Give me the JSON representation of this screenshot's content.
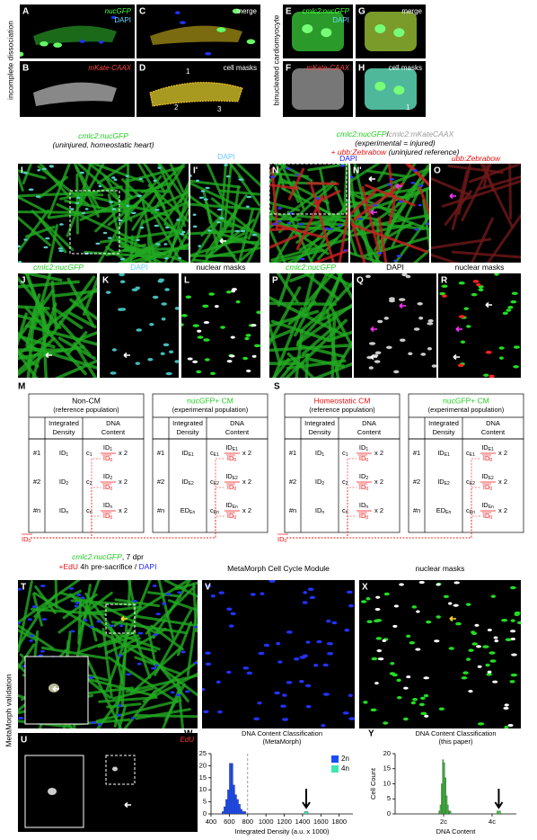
{
  "side_labels": [
    "incomplete dissociation",
    "binucleated cardiomyocyte",
    "MetaMorph validation"
  ],
  "panels": [
    {
      "letter": "A",
      "labels": [
        {
          "text": "nucGFP",
          "color": "#4f4",
          "italic": true
        },
        {
          "text": "DAPI",
          "color": "#6df"
        }
      ]
    },
    {
      "letter": "C",
      "labels": [
        {
          "text": "merge",
          "color": "#fff"
        }
      ]
    },
    {
      "letter": "B",
      "labels": [
        {
          "text": "mKate-CAAX",
          "color": "#f44",
          "italic": true
        }
      ]
    },
    {
      "letter": "D",
      "labels": [
        {
          "text": "cell masks",
          "color": "#fff"
        }
      ],
      "annotations": [
        "1",
        "2",
        "3"
      ]
    },
    {
      "letter": "E",
      "labels": [
        {
          "text": "cmlc2:nucGFP",
          "color": "#4f4",
          "italic": true
        },
        {
          "text": "DAPI",
          "color": "#6df"
        }
      ]
    },
    {
      "letter": "G",
      "labels": [
        {
          "text": "merge",
          "color": "#fff"
        }
      ]
    },
    {
      "letter": "F",
      "labels": [
        {
          "text": "mKate-CAAX",
          "color": "#f44",
          "italic": true
        }
      ]
    },
    {
      "letter": "H",
      "labels": [
        {
          "text": "cell masks",
          "color": "#fff"
        }
      ],
      "annotations": [
        "1"
      ]
    },
    {
      "letter": "I",
      "labels": []
    },
    {
      "letter": "I'",
      "labels": []
    },
    {
      "letter": "N",
      "labels": []
    },
    {
      "letter": "N'",
      "labels": []
    },
    {
      "letter": "O",
      "labels": []
    },
    {
      "letter": "J",
      "labels": []
    },
    {
      "letter": "K",
      "labels": []
    },
    {
      "letter": "L",
      "labels": []
    },
    {
      "letter": "P",
      "labels": []
    },
    {
      "letter": "Q",
      "labels": []
    },
    {
      "letter": "R",
      "labels": []
    },
    {
      "letter": "T",
      "labels": []
    },
    {
      "letter": "V",
      "labels": []
    },
    {
      "letter": "X",
      "labels": []
    },
    {
      "letter": "U",
      "labels": [
        {
          "text": "EdU",
          "color": "#f33",
          "italic": true
        }
      ]
    }
  ],
  "headers": [
    [
      {
        "text": "cmlc2:nucGFP",
        "color": "#2c2",
        "italic": true
      }
    ],
    [
      {
        "text": "(uninjured, homeostatic heart)",
        "color": "#000",
        "italic": true
      }
    ],
    [
      {
        "text": "cmlc2:nucGFP",
        "color": "#2c2",
        "italic": true
      },
      {
        "text": "/",
        "color": "#000"
      },
      {
        "text": "cmlc2:mKateCAAX",
        "color": "#999",
        "italic": true
      }
    ],
    [
      {
        "text": "(experimental = injured)",
        "color": "#000",
        "italic": true
      }
    ],
    [
      {
        "text": "+ ubb:Zebrabow",
        "color": "#e11",
        "italic": true
      },
      {
        "text": " (uninjured reference)",
        "color": "#000",
        "italic": true
      }
    ],
    [
      {
        "text": "DAPI",
        "color": "#6cf"
      }
    ],
    [
      {
        "text": "DAPI",
        "color": "#22f"
      }
    ],
    [
      {
        "text": "ubb:Zebrabow",
        "color": "#e11",
        "italic": true
      }
    ],
    [
      {
        "text": "cmlc2:nucGFP",
        "color": "#2c2",
        "italic": true
      }
    ],
    [
      {
        "text": "DAPI",
        "color": "#6cf"
      }
    ],
    [
      {
        "text": "nuclear masks",
        "color": "#000"
      }
    ],
    [
      {
        "text": "cmlc2:nucGFP",
        "color": "#2c2",
        "italic": true
      }
    ],
    [
      {
        "text": "DAPI",
        "color": "#000"
      }
    ],
    [
      {
        "text": "nuclear masks",
        "color": "#000"
      }
    ],
    [
      {
        "text": "cmlc2:nucGFP",
        "color": "#2c2",
        "italic": true
      },
      {
        "text": ", 7 dpr",
        "color": "#000"
      }
    ],
    [
      {
        "text": "+EdU",
        "color": "#e11"
      },
      {
        "text": " 4h pre-sacrifice / ",
        "color": "#000"
      },
      {
        "text": "DAPI",
        "color": "#22f"
      }
    ],
    [
      {
        "text": "MetaMorph Cell Cycle Module",
        "color": "#000"
      }
    ],
    [
      {
        "text": "nuclear masks",
        "color": "#000"
      }
    ]
  ],
  "tables": [
    {
      "letter": "M",
      "mean": {
        "base": "ID",
        "sub": "0"
      },
      "groups": [
        {
          "title": {
            "text": "Non-CM",
            "color": "#000"
          },
          "subtitle": "(reference population)",
          "cols": [
            [
              "Integrated",
              "Density"
            ],
            [
              "DNA",
              "Content"
            ]
          ],
          "rows": [
            {
              "label": "#1",
              "id": {
                "base": "ID",
                "sub": "1"
              },
              "c": {
                "base": "c",
                "sub": "1"
              },
              "num": {
                "base": "ID",
                "sub": "1"
              },
              "den": {
                "base": "ID",
                "sub": "0"
              },
              "mult": "x 2"
            },
            {
              "label": "#2",
              "id": {
                "base": "ID",
                "sub": "2"
              },
              "c": {
                "base": "c",
                "sub": "2"
              },
              "num": {
                "base": "ID",
                "sub": "2"
              },
              "den": {
                "base": "ID",
                "sub": "0"
              },
              "mult": "x 2"
            },
            {
              "label": "#n",
              "id": {
                "base": "ID",
                "sub": "n"
              },
              "c": {
                "base": "c",
                "sub": "n"
              },
              "num": {
                "base": "ID",
                "sub": "n"
              },
              "den": {
                "base": "ID",
                "sub": "0"
              },
              "mult": "x 2"
            }
          ]
        },
        {
          "title": {
            "text": "nucGFP+ CM",
            "color": "#2c2"
          },
          "subtitle": "(experimental population)",
          "cols": [
            [
              "Integrated",
              "Density"
            ],
            [
              "DNA",
              "Content"
            ]
          ],
          "rows": [
            {
              "label": "#1",
              "id": {
                "base": "ID",
                "sub": "E1"
              },
              "c": {
                "base": "c",
                "sub": "E1"
              },
              "num": {
                "base": "ID",
                "sub": "E1"
              },
              "den": {
                "base": "ID",
                "sub": "0"
              },
              "mult": "x 2"
            },
            {
              "label": "#2",
              "id": {
                "base": "ID",
                "sub": "E2"
              },
              "c": {
                "base": "c",
                "sub": "E2"
              },
              "num": {
                "base": "ID",
                "sub": "E2"
              },
              "den": {
                "base": "ID",
                "sub": "0"
              },
              "mult": "x 2"
            },
            {
              "label": "#n",
              "id": {
                "base": "ED",
                "sub": "En"
              },
              "c": {
                "base": "c",
                "sub": "En"
              },
              "num": {
                "base": "ID",
                "sub": "En"
              },
              "den": {
                "base": "ID",
                "sub": "0"
              },
              "mult": "x 2"
            }
          ]
        }
      ]
    },
    {
      "letter": "S",
      "mean": {
        "base": "ID",
        "sub": "0"
      },
      "groups": [
        {
          "title": {
            "text": "Homeostatic CM",
            "color": "#e11"
          },
          "subtitle": "(reference population)",
          "cols": [
            [
              "Integrated",
              "Density"
            ],
            [
              "DNA",
              "Content"
            ]
          ],
          "rows": [
            {
              "label": "#1",
              "id": {
                "base": "ID",
                "sub": "1"
              },
              "c": {
                "base": "c",
                "sub": "1"
              },
              "num": {
                "base": "ID",
                "sub": "1"
              },
              "den": {
                "base": "ID",
                "sub": "0"
              },
              "mult": "x 2"
            },
            {
              "label": "#2",
              "id": {
                "base": "ID",
                "sub": "2"
              },
              "c": {
                "base": "c",
                "sub": "2"
              },
              "num": {
                "base": "ID",
                "sub": "2"
              },
              "den": {
                "base": "ID",
                "sub": "0"
              },
              "mult": "x 2"
            },
            {
              "label": "#n",
              "id": {
                "base": "ID",
                "sub": "n"
              },
              "c": {
                "base": "c",
                "sub": "n"
              },
              "num": {
                "base": "ID",
                "sub": "n"
              },
              "den": {
                "base": "ID",
                "sub": "0"
              },
              "mult": "x 2"
            }
          ]
        },
        {
          "title": {
            "text": "nucGFP+ CM",
            "color": "#2c2"
          },
          "subtitle": "(experimental population)",
          "cols": [
            [
              "Integrated",
              "Density"
            ],
            [
              "DNA",
              "Content"
            ]
          ],
          "rows": [
            {
              "label": "#1",
              "id": {
                "base": "ID",
                "sub": "E1"
              },
              "c": {
                "base": "c",
                "sub": "E1"
              },
              "num": {
                "base": "ID",
                "sub": "E1"
              },
              "den": {
                "base": "ID",
                "sub": "0"
              },
              "mult": "x 2"
            },
            {
              "label": "#2",
              "id": {
                "base": "ID",
                "sub": "E2"
              },
              "c": {
                "base": "c",
                "sub": "E2"
              },
              "num": {
                "base": "ID",
                "sub": "E2"
              },
              "den": {
                "base": "ID",
                "sub": "0"
              },
              "mult": "x 2"
            },
            {
              "label": "#n",
              "id": {
                "base": "ED",
                "sub": "En"
              },
              "c": {
                "base": "c",
                "sub": "En"
              },
              "num": {
                "base": "ID",
                "sub": "En"
              },
              "den": {
                "base": "ID",
                "sub": "0"
              },
              "mult": "x 2"
            }
          ]
        }
      ]
    }
  ],
  "chart_data": [
    {
      "type": "histogram",
      "letter": "W",
      "title": "DNA Content Classification",
      "subtitle": "(MetaMorph)",
      "xlabel": "Integrated Density (a.u. x 1000)",
      "ylabel": "Cell Count",
      "xlim": [
        400,
        1950
      ],
      "xticks": [
        400,
        600,
        800,
        1000,
        1200,
        1400,
        1600,
        1800
      ],
      "ylim": [
        0,
        25
      ],
      "yticks": [
        0,
        5,
        10,
        15,
        20,
        25
      ],
      "threshold": 800,
      "legend": "upper right",
      "series": [
        {
          "name": "2n",
          "color": "#1a4bff",
          "bins": [
            520,
            540,
            560,
            580,
            600,
            620,
            640,
            660,
            680,
            700,
            720,
            740,
            760,
            780
          ],
          "counts": [
            1,
            3,
            6,
            10,
            21,
            21,
            12,
            8,
            6,
            4,
            2,
            1,
            1
          ]
        },
        {
          "name": "4n",
          "color": "#3ee8b0",
          "bins": [
            1420,
            1460
          ],
          "counts": [
            1
          ]
        }
      ]
    },
    {
      "type": "histogram",
      "letter": "Y",
      "title": "DNA Content Classification",
      "subtitle": "(this paper)",
      "xlabel": "DNA Content",
      "ylabel": "Cell Count",
      "xlim": [
        0,
        5
      ],
      "xticks": [
        {
          "value": 2,
          "label": "2c"
        },
        {
          "value": 4,
          "label": "4c"
        }
      ],
      "ylim": [
        0,
        20
      ],
      "yticks": [
        0,
        5,
        10,
        15,
        20
      ],
      "series": [
        {
          "color": "#3ec43e",
          "bins": [
            1.8,
            1.85,
            1.9,
            1.95,
            2.0,
            2.05,
            2.1,
            2.15,
            2.2,
            2.25,
            2.3
          ],
          "counts": [
            1,
            3,
            10,
            18,
            17,
            12,
            6,
            3,
            1,
            1
          ]
        },
        {
          "color": "#3ec43e",
          "bins": [
            4.2,
            4.35
          ],
          "counts": [
            1
          ]
        }
      ]
    }
  ]
}
